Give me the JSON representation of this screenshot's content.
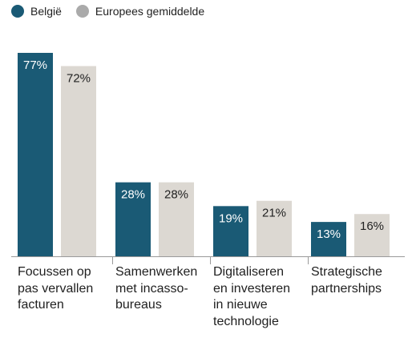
{
  "colors": {
    "belgie": "#1a5a75",
    "europees": "#dcd8d2",
    "axis": "#9a9a9a"
  },
  "legend": [
    {
      "name": "België",
      "color": "#1a5a75"
    },
    {
      "name": "Europees gemiddelde",
      "color": "#aaaaaa"
    }
  ],
  "chart_data": {
    "type": "bar",
    "categories": [
      [
        "Focussen op",
        "pas vervallen",
        "facturen"
      ],
      [
        "Samenwerken",
        "met incasso-",
        "bureaus"
      ],
      [
        "Digitaliseren",
        "en investeren",
        "in nieuwe",
        "technologie"
      ],
      [
        "Strategische",
        "partnerships"
      ]
    ],
    "series": [
      {
        "name": "België",
        "values": [
          77,
          28,
          19,
          13
        ],
        "labels": [
          "77%",
          "28%",
          "19%",
          "13%"
        ]
      },
      {
        "name": "Europees gemiddelde",
        "values": [
          72,
          28,
          21,
          16
        ],
        "labels": [
          "72%",
          "28%",
          "21%",
          "16%"
        ]
      }
    ],
    "ylim": [
      0,
      77
    ],
    "legend_position": "top-left"
  }
}
